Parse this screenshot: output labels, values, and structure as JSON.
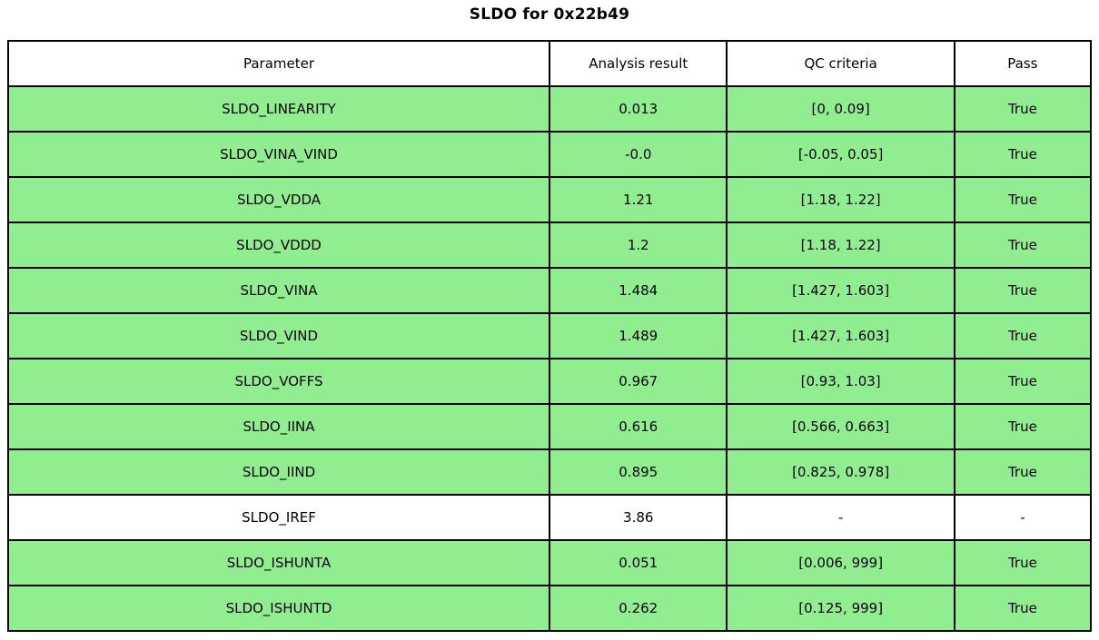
{
  "title": "SLDO for 0x22b49",
  "colors": {
    "pass_row": "#90ee90",
    "neutral_row": "#ffffff",
    "border": "#000000",
    "text": "#000000"
  },
  "chart_data": {
    "type": "table",
    "title": "SLDO for 0x22b49",
    "columns": [
      "Parameter",
      "Analysis result",
      "QC criteria",
      "Pass"
    ],
    "rows": [
      [
        "SLDO_LINEARITY",
        "0.013",
        "[0, 0.09]",
        "True"
      ],
      [
        "SLDO_VINA_VIND",
        "-0.0",
        "[-0.05, 0.05]",
        "True"
      ],
      [
        "SLDO_VDDA",
        "1.21",
        "[1.18, 1.22]",
        "True"
      ],
      [
        "SLDO_VDDD",
        "1.2",
        "[1.18, 1.22]",
        "True"
      ],
      [
        "SLDO_VINA",
        "1.484",
        "[1.427, 1.603]",
        "True"
      ],
      [
        "SLDO_VIND",
        "1.489",
        "[1.427, 1.603]",
        "True"
      ],
      [
        "SLDO_VOFFS",
        "0.967",
        "[0.93, 1.03]",
        "True"
      ],
      [
        "SLDO_IINA",
        "0.616",
        "[0.566, 0.663]",
        "True"
      ],
      [
        "SLDO_IIND",
        "0.895",
        "[0.825, 0.978]",
        "True"
      ],
      [
        "SLDO_IREF",
        "3.86",
        "-",
        "-"
      ],
      [
        "SLDO_ISHUNTA",
        "0.051",
        "[0.006, 999]",
        "True"
      ],
      [
        "SLDO_ISHUNTD",
        "0.262",
        "[0.125, 999]",
        "True"
      ]
    ],
    "row_passed": [
      true,
      true,
      true,
      true,
      true,
      true,
      true,
      true,
      true,
      null,
      true,
      true
    ],
    "layout": {
      "grid": true,
      "header_background": "#ffffff",
      "pass_row_background": "#90ee90",
      "neutral_row_background": "#ffffff"
    }
  }
}
